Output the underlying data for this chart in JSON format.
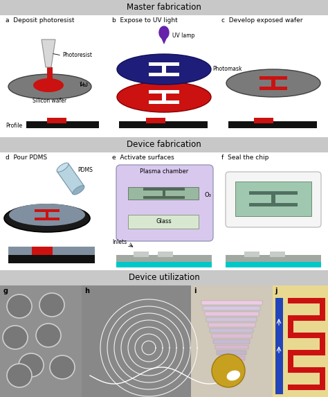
{
  "title_master": "Master fabrication",
  "title_device": "Device fabrication",
  "title_utilization": "Device utilization",
  "label_a": "a  Deposit photoresist",
  "label_b": "b  Expose to UV light",
  "label_c": "c  Develop exposed wafer",
  "label_d": "d  Pour PDMS",
  "label_e": "e  Activate surfaces",
  "label_f": "f  Seal the chip",
  "label_g": "g",
  "label_h": "h",
  "label_i": "i",
  "label_j": "j",
  "label_photoresist": "Photoresist",
  "label_silicon_wafer": "Silicon wafer",
  "label_profile": "Profile",
  "label_uv_lamp": "UV lamp",
  "label_photomask": "Photomask",
  "label_pdms": "PDMS",
  "label_plasma_chamber": "Plasma chamber",
  "label_o3": "O₃",
  "label_glass": "Glass",
  "label_inlets": "Inlets",
  "bg_color": "#ffffff",
  "section_header_bg": "#c8c8c8",
  "wafer_color": "#7a7a7a",
  "wafer_edge": "#404040",
  "resist_color": "#cc1111",
  "photomask_color": "#1e1e7a",
  "plasma_bg": "#d8c8ee",
  "glass_color_inner": "#b0d0b8",
  "chip_bg": "#f0f0f0",
  "cyan_color": "#00c8c8",
  "black_bar": "#111111",
  "pdms_blue": "#a8c0d0",
  "gray_panel_g": "#a8a8a8",
  "gray_panel_h": "#888888",
  "tan_panel_i": "#d0c8b8",
  "tan_panel_j": "#e8d890",
  "purple_drop": "#6622aa"
}
